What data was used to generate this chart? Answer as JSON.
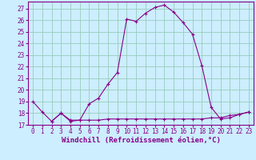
{
  "xlabel": "Windchill (Refroidissement éolien,°C)",
  "bg_color": "#cceeff",
  "line_color": "#880088",
  "grid_color": "#99ccbb",
  "xlim": [
    -0.5,
    23.5
  ],
  "ylim": [
    17.0,
    27.6
  ],
  "yticks": [
    17,
    18,
    19,
    20,
    21,
    22,
    23,
    24,
    25,
    26,
    27
  ],
  "xticks": [
    0,
    1,
    2,
    3,
    4,
    5,
    6,
    7,
    8,
    9,
    10,
    11,
    12,
    13,
    14,
    15,
    16,
    17,
    18,
    19,
    20,
    21,
    22,
    23
  ],
  "line1_x": [
    0,
    1,
    2,
    3,
    4,
    5,
    6,
    7,
    8,
    9,
    10,
    11,
    12,
    13,
    14,
    15,
    16,
    17,
    18,
    19,
    20,
    21,
    22,
    23
  ],
  "line1_y": [
    19.0,
    18.1,
    17.3,
    18.0,
    17.3,
    17.4,
    18.8,
    19.3,
    20.5,
    21.5,
    26.1,
    25.9,
    26.6,
    27.1,
    27.3,
    26.7,
    25.8,
    24.8,
    22.1,
    18.5,
    17.5,
    17.6,
    17.9,
    18.1
  ],
  "line2_x": [
    2,
    3,
    4,
    5,
    6,
    7,
    8,
    9,
    10,
    11,
    12,
    13,
    14,
    15,
    16,
    17,
    18,
    19,
    20,
    21,
    22,
    23
  ],
  "line2_y": [
    17.3,
    18.0,
    17.4,
    17.4,
    17.4,
    17.4,
    17.5,
    17.5,
    17.5,
    17.5,
    17.5,
    17.5,
    17.5,
    17.5,
    17.5,
    17.5,
    17.5,
    17.6,
    17.6,
    17.8,
    17.9,
    18.1
  ],
  "tick_fontsize": 5.5,
  "xlabel_fontsize": 6.5
}
